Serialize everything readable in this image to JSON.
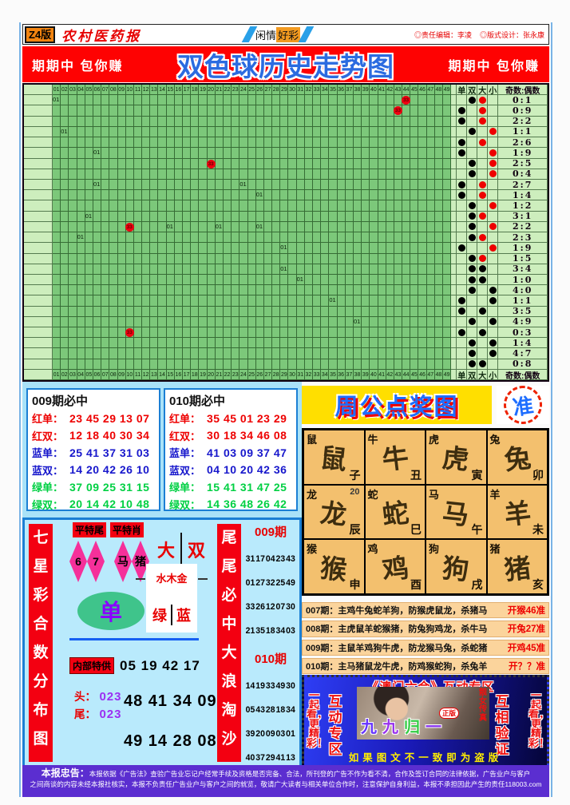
{
  "header": {
    "edition": "Z4版",
    "paper": "农村医药报",
    "masthead_center": [
      "闲情",
      "好彩"
    ],
    "editor": "◎责任编辑：李凌",
    "designer": "◎版式设计：张永康"
  },
  "banner": {
    "left": "期期中 包你赚",
    "title": "双色球历史走势图",
    "right": "期期中 包你赚"
  },
  "chart": {
    "mark_text": "01",
    "ball_text": "33",
    "ball_color": "#ee0011",
    "grid_color": "#7cc87a",
    "columns": [
      "01",
      "02",
      "03",
      "04",
      "05",
      "06",
      "07",
      "08",
      "09",
      "10",
      "11",
      "12",
      "13",
      "14",
      "15",
      "16",
      "17",
      "18",
      "19",
      "20",
      "21",
      "22",
      "23",
      "24",
      "25",
      "26",
      "27",
      "28",
      "29",
      "30",
      "31",
      "32",
      "33",
      "34",
      "35",
      "36",
      "37",
      "38",
      "39",
      "40",
      "41",
      "42",
      "43",
      "44",
      "45",
      "46",
      "47",
      "48",
      "49"
    ],
    "side_headers": [
      "单",
      "双",
      "大",
      "小"
    ],
    "ratio_header": "奇数:偶数",
    "rows": [
      {
        "r": "0:1",
        "oe": "双",
        "sz": "大",
        "rd": true,
        "m": [
          1
        ],
        "b": [
          44
        ]
      },
      {
        "r": "0:9",
        "oe": "单",
        "sz": "大",
        "rd": true,
        "b": [
          43
        ]
      },
      {
        "r": "2:2",
        "oe": "单",
        "sz": "大",
        "rd": true
      },
      {
        "r": "1:1",
        "oe": "双",
        "sz": "小",
        "rd": true,
        "m": [
          2
        ]
      },
      {
        "r": "2:6",
        "oe": "单",
        "sz": "大",
        "rd": true
      },
      {
        "r": "1:9",
        "oe": "单",
        "sz": "小",
        "rd": true,
        "m": [
          6
        ]
      },
      {
        "r": "2:5",
        "oe": "双",
        "sz": "小",
        "rd": true,
        "b": [
          20
        ]
      },
      {
        "r": "0:4",
        "oe": "双",
        "sz": "小",
        "rd": true
      },
      {
        "r": "2:7",
        "oe": "单",
        "sz": "大",
        "rd": true,
        "m": [
          6,
          24
        ]
      },
      {
        "r": "1:4",
        "oe": "单",
        "sz": "大",
        "rd": true,
        "m": [
          26
        ]
      },
      {
        "r": "1:2",
        "oe": "双",
        "sz": "小",
        "rd": true
      },
      {
        "r": "3:1",
        "oe": "双",
        "sz": "大",
        "rd": true,
        "m": [
          5
        ]
      },
      {
        "r": "2:2",
        "oe": "双",
        "sz": "小",
        "rd": true,
        "m": [
          15,
          21,
          26
        ],
        "b": [
          10
        ]
      },
      {
        "r": "2:3",
        "oe": "双",
        "sz": "大",
        "rd": true,
        "m": [
          4
        ]
      },
      {
        "r": "1:9",
        "oe": "单",
        "sz": "小",
        "rd": true,
        "m": [
          29
        ]
      },
      {
        "r": "1:5",
        "oe": "双",
        "sz": "大",
        "rd": true
      },
      {
        "r": "3:4",
        "oe": "双",
        "sz": "大",
        "rd": false,
        "m": [
          29
        ]
      },
      {
        "r": "1:0",
        "oe": "双",
        "sz": "大",
        "rd": false,
        "m": [
          31
        ]
      },
      {
        "r": "4:0",
        "oe": "双",
        "sz": "小",
        "rd": false
      },
      {
        "r": "1:1",
        "oe": "单",
        "sz": "小",
        "rd": false,
        "m": [
          35
        ]
      },
      {
        "r": "3:5",
        "oe": "单",
        "sz": "大",
        "rd": false
      },
      {
        "r": "4:9",
        "oe": "双",
        "sz": "小",
        "rd": false,
        "m": [
          38
        ]
      },
      {
        "r": "0:3",
        "oe": "单",
        "sz": "大",
        "rd": false,
        "b": [
          10
        ]
      },
      {
        "r": "1:4",
        "oe": "双",
        "sz": "小",
        "rd": false
      },
      {
        "r": "4:7",
        "oe": "双",
        "sz": "小",
        "rd": false
      },
      {
        "r": "0:8",
        "oe": "双",
        "sz": "大",
        "rd": false
      }
    ]
  },
  "pred_boxes": [
    {
      "title": "009期必中",
      "rows": [
        {
          "label": "红单：",
          "value": "23 45 29 13 07",
          "color": "red"
        },
        {
          "label": "红双：",
          "value": "12 18 40 30 34",
          "color": "red"
        },
        {
          "label": "蓝单：",
          "value": "25 41 37 31 03",
          "color": "blue"
        },
        {
          "label": "蓝双：",
          "value": "14 20 42 26 10",
          "color": "blue"
        },
        {
          "label": "绿单：",
          "value": "37 09 25 31 15",
          "color": "green"
        },
        {
          "label": "绿双：",
          "value": "20 14 42 10 48",
          "color": "green"
        }
      ]
    },
    {
      "title": "010期必中",
      "rows": [
        {
          "label": "红单：",
          "value": "35 45 01 23 29",
          "color": "red"
        },
        {
          "label": "红双：",
          "value": "30 18 34 46 08",
          "color": "red"
        },
        {
          "label": "蓝单：",
          "value": "41 03 09 37 47",
          "color": "blue"
        },
        {
          "label": "蓝双：",
          "value": "04 10 20 42 36",
          "color": "blue"
        },
        {
          "label": "绿单：",
          "value": "15 41 31 47 25",
          "color": "green"
        },
        {
          "label": "绿双：",
          "value": "14 36 48 26 42",
          "color": "green"
        }
      ]
    }
  ],
  "zhougong": {
    "title": "周公点奖图",
    "badge": "准",
    "cells": [
      {
        "animal": "鼠",
        "branch": "子"
      },
      {
        "animal": "牛",
        "branch": "丑"
      },
      {
        "animal": "虎",
        "branch": "寅"
      },
      {
        "animal": "兔",
        "branch": "卯"
      },
      {
        "animal": "龙",
        "branch": "辰",
        "corner": "20"
      },
      {
        "animal": "蛇",
        "branch": "巳"
      },
      {
        "animal": "马",
        "branch": "午"
      },
      {
        "animal": "羊",
        "branch": "未"
      },
      {
        "animal": "猴",
        "branch": "申"
      },
      {
        "animal": "鸡",
        "branch": "酉"
      },
      {
        "animal": "狗",
        "branch": "戌"
      },
      {
        "animal": "猪",
        "branch": "亥"
      }
    ]
  },
  "tips": [
    {
      "text": "007期：主鸡牛兔蛇羊狗，防猴虎鼠龙，杀猪马",
      "result": "开猴46准"
    },
    {
      "text": "008期：主虎鼠羊蛇猴猪，防兔狗鸡龙，杀牛马",
      "result": "开兔27准"
    },
    {
      "text": "009期：主鼠羊鸡狗牛虎，防龙猴马兔，杀蛇猪",
      "result": "开鸡45准"
    },
    {
      "text": "010期：主马猪鼠龙牛虎，防鸡猴蛇狗，杀兔羊",
      "result": "开？？准"
    }
  ],
  "qxc": {
    "left_strip": "七星彩合数分布图",
    "label1": "平特尾",
    "label2": "平特肖",
    "diamonds": [
      "6",
      "7",
      "马",
      "猪"
    ],
    "big": "大",
    "double": "双",
    "wuxing": "水木金",
    "green": "绿",
    "blue": "蓝",
    "oval": "单",
    "neibu_label": "内部特供",
    "neibu_numbers": "05 19 42 17",
    "tou_label": "头：",
    "tou_value": "023",
    "wei_label": "尾：",
    "wei_value": "023",
    "big_line1": "48 41 34 09",
    "big_line2": "49 14 28 08"
  },
  "weiwei_strip": "尾尾必中大浪淘沙",
  "result_col": {
    "periods": [
      {
        "name": "009期",
        "groups": [
          "31 17 04 23 43",
          "01 27 32 25 49",
          "33 26 12 07 30",
          "21 35 18 34 03"
        ]
      },
      {
        "name": "010期",
        "groups": [
          "14 19 33 49 30",
          "05 43 28 18 34",
          "39 20 09 03 01",
          "40 37 29 41 13"
        ]
      }
    ]
  },
  "aomen": {
    "title": "《澳门六合》互动专区",
    "left_outer": "一起看，更精彩！",
    "left_inner": "互动专区",
    "right_inner": "互相验证",
    "right_outer": "一起看，更精彩！",
    "photo_text": "九九归一",
    "photo_text_colors": [
      "#6633ff",
      "#9933ee",
      "#33cc44",
      "#8833ee"
    ],
    "photo_badge": "正版",
    "photo_side": "靓女传真",
    "bottom": "如果图文不一致即为盗版"
  },
  "notice": {
    "label": "本报忠告：",
    "line1": "本报依据《广告法》查验广告业忘记户经常手续及资格是否完备、合法，所刊登的广告不作为看不清，合作及签订合同的法律依据，广告业户与客户",
    "line2": "之间商谈的内容未经本报社核实，本报不负责任广告业户与客户之间的就览，敬请广大读者与相关单位合作时，注意保护自身利益，本报不承担因此产生的责任118003.com"
  }
}
